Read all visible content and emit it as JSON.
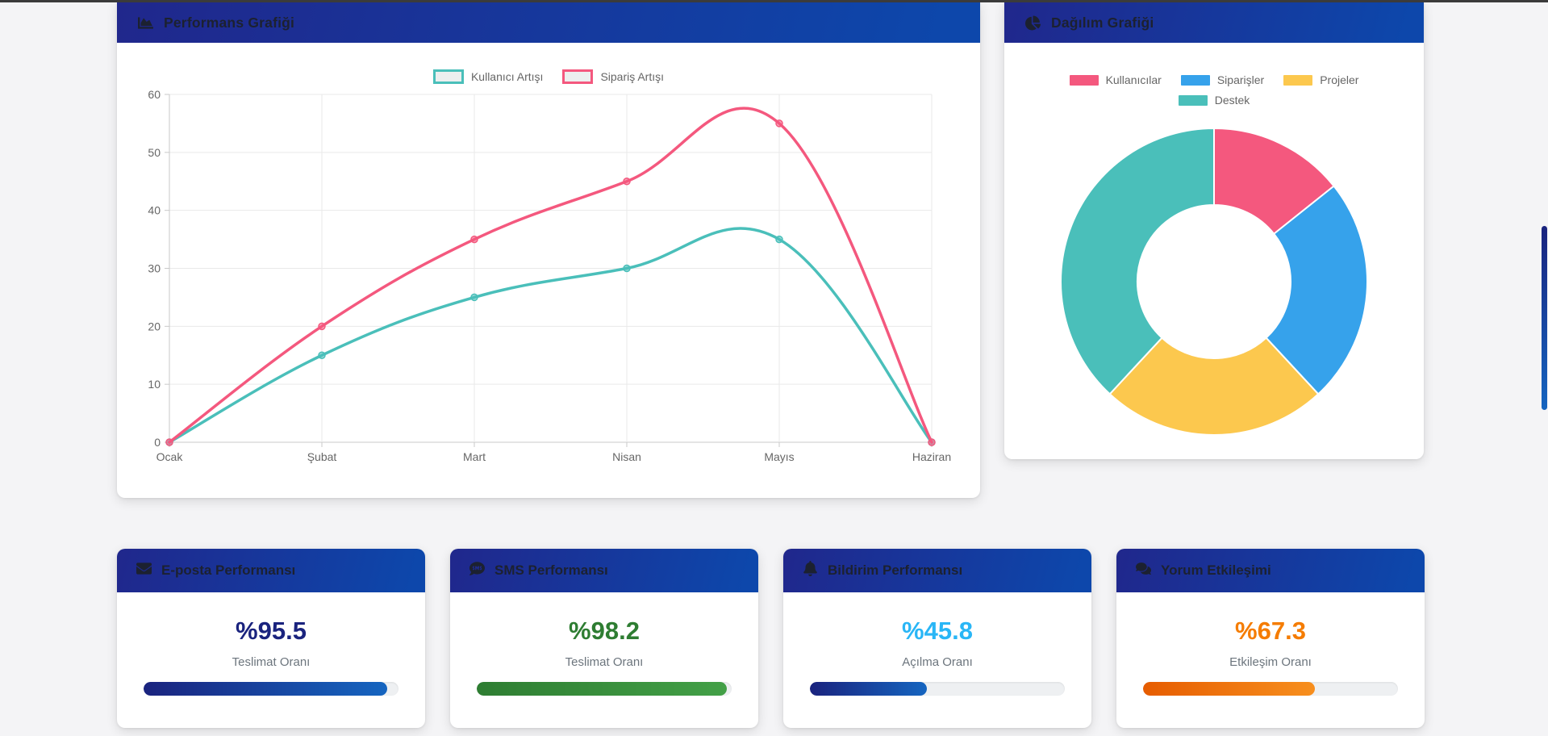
{
  "page": {
    "background": "#f4f4f6",
    "top_strip_color": "#3b3b3b"
  },
  "performance_card": {
    "title": "Performans Grafiği",
    "icon": "chart-area-icon"
  },
  "distribution_card": {
    "title": "Dağılım Grafiği",
    "icon": "pie-chart-icon"
  },
  "chart_data": [
    {
      "id": "performance-line",
      "type": "line",
      "title": "Performans Grafiği",
      "categories": [
        "Ocak",
        "Şubat",
        "Mart",
        "Nisan",
        "Mayıs",
        "Haziran"
      ],
      "series": [
        {
          "name": "Kullanıcı Artışı",
          "values": [
            0,
            15,
            25,
            30,
            35,
            0
          ],
          "color": "#4abfba"
        },
        {
          "name": "Sipariş Artışı",
          "values": [
            0,
            20,
            35,
            45,
            55,
            0
          ],
          "color": "#f4587e"
        }
      ],
      "ylim": [
        0,
        60
      ],
      "yticks": [
        0,
        10,
        20,
        30,
        40,
        50,
        60
      ],
      "grid": true,
      "legend_position": "top"
    },
    {
      "id": "distribution-doughnut",
      "type": "pie",
      "title": "Dağılım Grafiği",
      "labels": [
        "Kullanıcılar",
        "Siparişler",
        "Projeler",
        "Destek"
      ],
      "values": [
        15,
        25,
        25,
        40
      ],
      "colors": [
        "#f4587e",
        "#36a2eb",
        "#fcc84e",
        "#4abfba"
      ],
      "cutout": "50%",
      "legend_position": "top"
    }
  ],
  "stat_cards": [
    {
      "title": "E-posta Performansı",
      "icon": "envelope-icon",
      "value": "%95.5",
      "percent": 95.5,
      "label": "Teslimat Oranı",
      "value_color": "#1a237e",
      "bar_gradient": [
        "#1a237e",
        "#1565c0"
      ]
    },
    {
      "title": "SMS Performansı",
      "icon": "sms-icon",
      "value": "%98.2",
      "percent": 98.2,
      "label": "Teslimat Oranı",
      "value_color": "#2e7d32",
      "bar_gradient": [
        "#2e7d32",
        "#43a047"
      ]
    },
    {
      "title": "Bildirim Performansı",
      "icon": "bell-icon",
      "value": "%45.8",
      "percent": 45.8,
      "label": "Açılma Oranı",
      "value_color": "#29b6f6",
      "bar_gradient": [
        "#1a237e",
        "#1565c0"
      ]
    },
    {
      "title": "Yorum Etkileşimi",
      "icon": "comments-icon",
      "value": "%67.3",
      "percent": 67.3,
      "label": "Etkileşim Oranı",
      "value_color": "#f57c00",
      "bar_gradient": [
        "#e65c00",
        "#f78f1e"
      ]
    }
  ],
  "scrollbar": {
    "thumb_gradient": [
      "#1a237e",
      "#1565c0"
    ]
  }
}
